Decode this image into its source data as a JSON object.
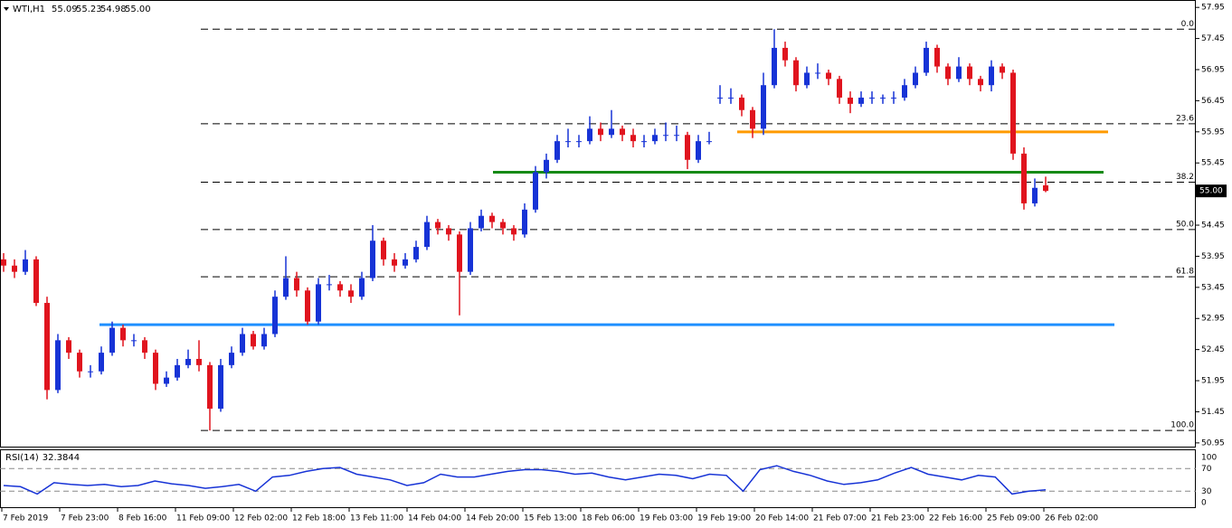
{
  "chart_data": {
    "type": "candlestick",
    "symbol": "WTI,H1",
    "up_color": "#1733d6",
    "down_color": "#e0141e",
    "candles": [
      [
        53.9,
        54.0,
        53.7,
        53.8
      ],
      [
        53.8,
        53.9,
        53.6,
        53.7
      ],
      [
        53.7,
        54.05,
        53.65,
        53.9
      ],
      [
        53.9,
        53.95,
        53.15,
        53.2
      ],
      [
        53.2,
        53.3,
        51.65,
        51.8
      ],
      [
        51.8,
        52.7,
        51.75,
        52.6
      ],
      [
        52.6,
        52.65,
        52.3,
        52.4
      ],
      [
        52.4,
        52.45,
        52.0,
        52.1
      ],
      [
        52.1,
        52.2,
        52.0,
        52.1
      ],
      [
        52.1,
        52.5,
        52.05,
        52.4
      ],
      [
        52.4,
        52.9,
        52.35,
        52.8
      ],
      [
        52.8,
        52.85,
        52.5,
        52.6
      ],
      [
        52.6,
        52.7,
        52.5,
        52.6
      ],
      [
        52.6,
        52.65,
        52.3,
        52.4
      ],
      [
        52.4,
        52.45,
        51.8,
        51.9
      ],
      [
        51.9,
        52.1,
        51.85,
        52.0
      ],
      [
        52.0,
        52.3,
        51.95,
        52.2
      ],
      [
        52.2,
        52.45,
        52.15,
        52.3
      ],
      [
        52.3,
        52.6,
        52.1,
        52.2
      ],
      [
        52.2,
        52.25,
        51.15,
        51.5
      ],
      [
        51.5,
        52.3,
        51.45,
        52.2
      ],
      [
        52.2,
        52.5,
        52.15,
        52.4
      ],
      [
        52.4,
        52.8,
        52.35,
        52.7
      ],
      [
        52.7,
        52.75,
        52.45,
        52.5
      ],
      [
        52.5,
        52.8,
        52.45,
        52.7
      ],
      [
        52.7,
        53.4,
        52.65,
        53.3
      ],
      [
        53.3,
        53.95,
        53.25,
        53.6
      ],
      [
        53.6,
        53.7,
        53.3,
        53.4
      ],
      [
        53.4,
        53.45,
        52.85,
        52.9
      ],
      [
        52.9,
        53.6,
        52.85,
        53.5
      ],
      [
        53.5,
        53.65,
        53.4,
        53.5
      ],
      [
        53.5,
        53.55,
        53.3,
        53.4
      ],
      [
        53.4,
        53.5,
        53.2,
        53.3
      ],
      [
        53.3,
        53.7,
        53.25,
        53.6
      ],
      [
        53.6,
        54.45,
        53.55,
        54.2
      ],
      [
        54.2,
        54.25,
        53.8,
        53.9
      ],
      [
        53.9,
        54.0,
        53.7,
        53.8
      ],
      [
        53.8,
        54.0,
        53.75,
        53.9
      ],
      [
        53.9,
        54.2,
        53.85,
        54.1
      ],
      [
        54.1,
        54.6,
        54.05,
        54.5
      ],
      [
        54.5,
        54.55,
        54.3,
        54.4
      ],
      [
        54.4,
        54.45,
        54.2,
        54.3
      ],
      [
        54.3,
        54.35,
        53.0,
        53.7
      ],
      [
        53.7,
        54.5,
        53.65,
        54.4
      ],
      [
        54.4,
        54.7,
        54.35,
        54.6
      ],
      [
        54.6,
        54.65,
        54.4,
        54.5
      ],
      [
        54.5,
        54.55,
        54.3,
        54.4
      ],
      [
        54.4,
        54.45,
        54.2,
        54.3
      ],
      [
        54.3,
        54.8,
        54.25,
        54.7
      ],
      [
        54.7,
        55.4,
        54.65,
        55.3
      ],
      [
        55.3,
        55.6,
        55.2,
        55.5
      ],
      [
        55.5,
        55.9,
        55.45,
        55.8
      ],
      [
        55.8,
        56.0,
        55.7,
        55.8
      ],
      [
        55.8,
        55.9,
        55.7,
        55.8
      ],
      [
        55.8,
        56.2,
        55.75,
        56.0
      ],
      [
        56.0,
        56.1,
        55.8,
        55.9
      ],
      [
        55.9,
        56.3,
        55.85,
        56.0
      ],
      [
        56.0,
        56.05,
        55.8,
        55.9
      ],
      [
        55.9,
        56.0,
        55.7,
        55.8
      ],
      [
        55.8,
        55.9,
        55.7,
        55.8
      ],
      [
        55.8,
        56.0,
        55.75,
        55.9
      ],
      [
        55.9,
        56.1,
        55.8,
        55.9
      ],
      [
        55.9,
        56.05,
        55.8,
        55.9
      ],
      [
        55.9,
        55.95,
        55.35,
        55.5
      ],
      [
        55.5,
        55.9,
        55.45,
        55.8
      ],
      [
        55.8,
        55.95,
        55.75,
        55.8
      ],
      [
        56.5,
        56.7,
        56.4,
        56.5
      ],
      [
        56.5,
        56.65,
        56.4,
        56.5
      ],
      [
        56.5,
        56.55,
        56.2,
        56.3
      ],
      [
        56.3,
        56.35,
        55.85,
        56.0
      ],
      [
        56.0,
        56.9,
        55.9,
        56.7
      ],
      [
        56.7,
        57.6,
        56.65,
        57.3
      ],
      [
        57.3,
        57.4,
        57.0,
        57.1
      ],
      [
        57.1,
        57.15,
        56.6,
        56.7
      ],
      [
        56.7,
        57.0,
        56.65,
        56.9
      ],
      [
        56.9,
        57.05,
        56.8,
        56.9
      ],
      [
        56.9,
        56.95,
        56.7,
        56.8
      ],
      [
        56.8,
        56.85,
        56.4,
        56.5
      ],
      [
        56.5,
        56.6,
        56.25,
        56.4
      ],
      [
        56.4,
        56.6,
        56.35,
        56.5
      ],
      [
        56.5,
        56.6,
        56.4,
        56.5
      ],
      [
        56.5,
        56.55,
        56.4,
        56.5
      ],
      [
        56.5,
        56.6,
        56.4,
        56.5
      ],
      [
        56.5,
        56.8,
        56.45,
        56.7
      ],
      [
        56.7,
        57.0,
        56.65,
        56.9
      ],
      [
        56.9,
        57.4,
        56.85,
        57.3
      ],
      [
        57.3,
        57.35,
        56.9,
        57.0
      ],
      [
        57.0,
        57.05,
        56.7,
        56.8
      ],
      [
        56.8,
        57.15,
        56.75,
        57.0
      ],
      [
        57.0,
        57.05,
        56.7,
        56.8
      ],
      [
        56.8,
        56.85,
        56.6,
        56.7
      ],
      [
        56.7,
        57.1,
        56.6,
        57.0
      ],
      [
        57.0,
        57.05,
        56.8,
        56.9
      ],
      [
        56.9,
        56.95,
        55.5,
        55.6
      ],
      [
        55.6,
        55.7,
        54.7,
        54.8
      ],
      [
        54.8,
        55.2,
        54.75,
        55.05
      ],
      [
        55.09,
        55.23,
        54.98,
        55.0
      ]
    ],
    "last_bar_labels": [
      "55.09",
      "55.23",
      "54.98",
      "55.00"
    ],
    "ylim": [
      50.89,
      58.04
    ],
    "yticks": [
      57.95,
      57.45,
      56.95,
      56.45,
      55.95,
      55.45,
      54.45,
      53.95,
      53.45,
      52.95,
      52.45,
      51.95,
      51.45,
      50.95
    ],
    "x_labels": [
      "7 Feb 2019",
      "7 Feb 23:00",
      "8 Feb 16:00",
      "11 Feb 09:00",
      "12 Feb 02:00",
      "12 Feb 18:00",
      "13 Feb 11:00",
      "14 Feb 04:00",
      "14 Feb 20:00",
      "15 Feb 13:00",
      "18 Feb 06:00",
      "19 Feb 03:00",
      "19 Feb 19:00",
      "20 Feb 14:00",
      "21 Feb 07:00",
      "21 Feb 23:00",
      "22 Feb 16:00",
      "25 Feb 09:00",
      "26 Feb 02:00"
    ],
    "fib_levels": [
      {
        "ratio": "0.0",
        "price": 57.6
      },
      {
        "ratio": "23.6",
        "price": 56.08
      },
      {
        "ratio": "38.2",
        "price": 55.14
      },
      {
        "ratio": "50.0",
        "price": 54.38
      },
      {
        "ratio": "61.8",
        "price": 53.62
      },
      {
        "ratio": "100.0",
        "price": 51.15
      }
    ],
    "lines": [
      {
        "price": 52.85,
        "color": "#1e8fff"
      },
      {
        "price": 55.3,
        "color": "#168a16"
      },
      {
        "price": 55.95,
        "color": "#ff9a00"
      }
    ],
    "rsi": {
      "title": "RSI(14)",
      "color": "#1733d6",
      "values": [
        40,
        38,
        25,
        45,
        42,
        40,
        42,
        38,
        40,
        48,
        43,
        40,
        35,
        38,
        42,
        30,
        55,
        58,
        65,
        70,
        72,
        60,
        55,
        50,
        40,
        45,
        60,
        55,
        55,
        60,
        65,
        68,
        68,
        65,
        60,
        62,
        55,
        50,
        55,
        60,
        58,
        52,
        60,
        58,
        30,
        68,
        75,
        65,
        58,
        48,
        42,
        45,
        50,
        62,
        72,
        60,
        55,
        50,
        58,
        55,
        25,
        30,
        32.3844
      ],
      "ylim": [
        0,
        100
      ],
      "yticks": [
        100,
        70,
        30,
        0
      ]
    }
  }
}
